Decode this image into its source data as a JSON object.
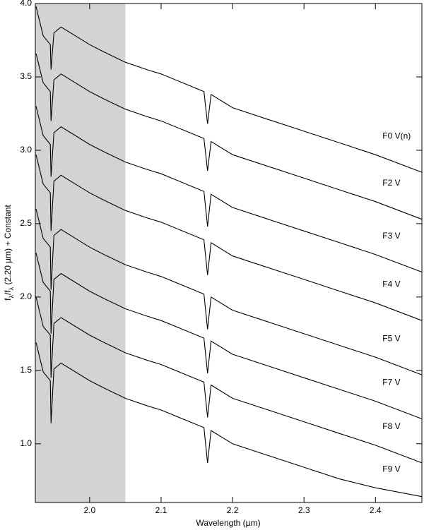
{
  "chart_data": {
    "type": "line",
    "xlabel": "Wavelength (µm)",
    "ylabel_parts": [
      "f",
      "λ",
      "/f",
      "λ",
      " (2.20 µm) + Constant"
    ],
    "x": [
      1.925,
      1.935,
      1.945,
      1.946,
      1.95,
      1.96,
      1.98,
      2.0,
      2.02,
      2.05,
      2.08,
      2.1,
      2.13,
      2.16,
      2.165,
      2.17,
      2.2,
      2.25,
      2.3,
      2.35,
      2.4,
      2.465
    ],
    "series": [
      {
        "name": "F0 V(n)",
        "color": "#000000",
        "values": [
          3.98,
          3.78,
          3.72,
          3.55,
          3.8,
          3.84,
          3.78,
          3.72,
          3.67,
          3.6,
          3.55,
          3.52,
          3.46,
          3.4,
          3.18,
          3.38,
          3.29,
          3.21,
          3.13,
          3.05,
          2.97,
          2.85
        ]
      },
      {
        "name": "F2 V",
        "color": "#000000",
        "values": [
          3.66,
          3.46,
          3.4,
          3.2,
          3.48,
          3.52,
          3.46,
          3.4,
          3.35,
          3.28,
          3.23,
          3.2,
          3.14,
          3.08,
          2.86,
          3.06,
          2.97,
          2.89,
          2.81,
          2.73,
          2.65,
          2.53
        ]
      },
      {
        "name": "F3 V",
        "color": "#000000",
        "values": [
          3.3,
          3.1,
          3.04,
          2.82,
          3.12,
          3.16,
          3.1,
          3.04,
          2.99,
          2.92,
          2.87,
          2.84,
          2.78,
          2.72,
          2.48,
          2.7,
          2.61,
          2.53,
          2.45,
          2.37,
          2.29,
          2.17
        ]
      },
      {
        "name": "F4 V",
        "color": "#000000",
        "values": [
          2.97,
          2.77,
          2.71,
          2.45,
          2.79,
          2.83,
          2.77,
          2.71,
          2.66,
          2.59,
          2.54,
          2.51,
          2.45,
          2.39,
          2.15,
          2.37,
          2.28,
          2.2,
          2.12,
          2.04,
          1.96,
          1.84
        ]
      },
      {
        "name": "F5 V",
        "color": "#000000",
        "values": [
          2.6,
          2.4,
          2.34,
          2.05,
          2.42,
          2.46,
          2.4,
          2.34,
          2.29,
          2.22,
          2.17,
          2.14,
          2.08,
          2.02,
          1.78,
          2.0,
          1.91,
          1.83,
          1.75,
          1.67,
          1.59,
          1.47
        ]
      },
      {
        "name": "F7 V",
        "color": "#000000",
        "values": [
          2.3,
          2.1,
          2.04,
          1.75,
          2.12,
          2.16,
          2.1,
          2.04,
          1.99,
          1.92,
          1.87,
          1.84,
          1.78,
          1.72,
          1.48,
          1.7,
          1.61,
          1.53,
          1.45,
          1.37,
          1.29,
          1.17
        ]
      },
      {
        "name": "F8 V",
        "color": "#000000",
        "values": [
          2.0,
          1.8,
          1.74,
          1.45,
          1.82,
          1.86,
          1.8,
          1.74,
          1.69,
          1.62,
          1.57,
          1.54,
          1.48,
          1.42,
          1.18,
          1.4,
          1.31,
          1.23,
          1.15,
          1.07,
          0.99,
          0.87
        ]
      },
      {
        "name": "F9 V",
        "color": "#000000",
        "values": [
          1.69,
          1.49,
          1.43,
          1.14,
          1.51,
          1.55,
          1.49,
          1.43,
          1.38,
          1.31,
          1.26,
          1.23,
          1.17,
          1.11,
          0.87,
          1.09,
          1.0,
          0.92,
          0.84,
          0.76,
          0.7,
          0.64
        ]
      }
    ],
    "shaded_xrange": [
      1.924,
      2.05
    ],
    "shade_color": "#d3d3d3",
    "xlim": [
      1.924,
      2.465
    ],
    "ylim": [
      0.6,
      4.0
    ],
    "xticks": [
      {
        "value": 2.0,
        "label": "2.0"
      },
      {
        "value": 2.1,
        "label": "2.1"
      },
      {
        "value": 2.2,
        "label": "2.2"
      },
      {
        "value": 2.3,
        "label": "2.3"
      },
      {
        "value": 2.4,
        "label": "2.4"
      }
    ],
    "yticks": [
      {
        "value": 1.0,
        "label": "1.0"
      },
      {
        "value": 1.5,
        "label": "1.5"
      },
      {
        "value": 2.0,
        "label": "2.0"
      },
      {
        "value": 2.5,
        "label": "2.5"
      },
      {
        "value": 3.0,
        "label": "3.0"
      },
      {
        "value": 3.5,
        "label": "3.5"
      },
      {
        "value": 4.0,
        "label": "4.0"
      }
    ],
    "grid": false
  }
}
